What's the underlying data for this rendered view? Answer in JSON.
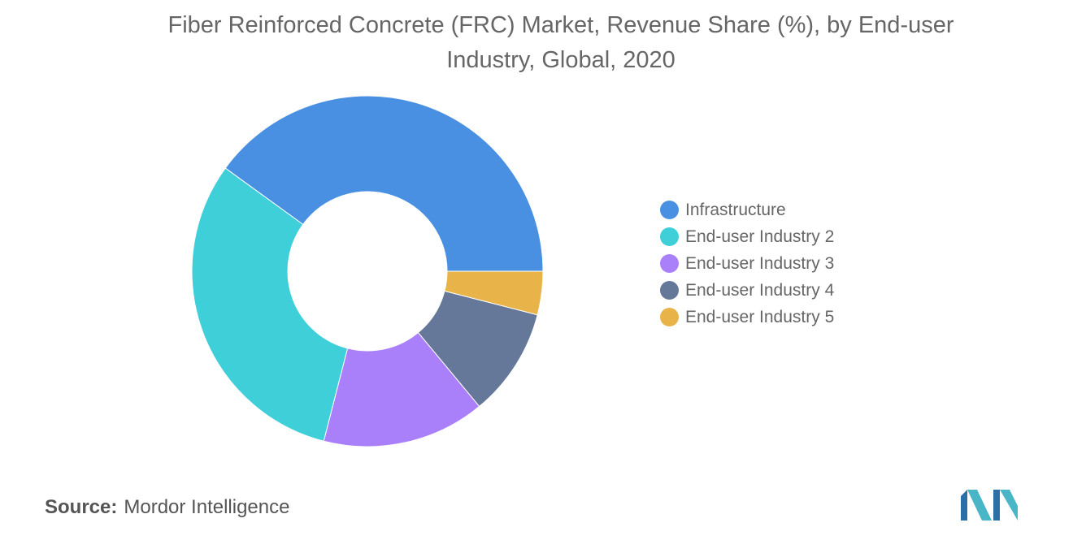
{
  "chart_data": {
    "type": "pie",
    "title": "Fiber Reinforced Concrete (FRC) Market, Revenue Share (%), by End-user Industry, Global, 2020",
    "categories": [
      "Infrastructure",
      "End-user Industry 2",
      "End-user Industry 3",
      "End-user Industry 4",
      "End-user Industry 5"
    ],
    "values": [
      40,
      31,
      15,
      10,
      4
    ],
    "colors": [
      "#4a90e2",
      "#3ecfd9",
      "#a97ffa",
      "#657899",
      "#e8b44a"
    ],
    "donut": true,
    "legend_position": "right"
  },
  "source": {
    "label": "Source:",
    "text": "Mordor Intelligence"
  }
}
